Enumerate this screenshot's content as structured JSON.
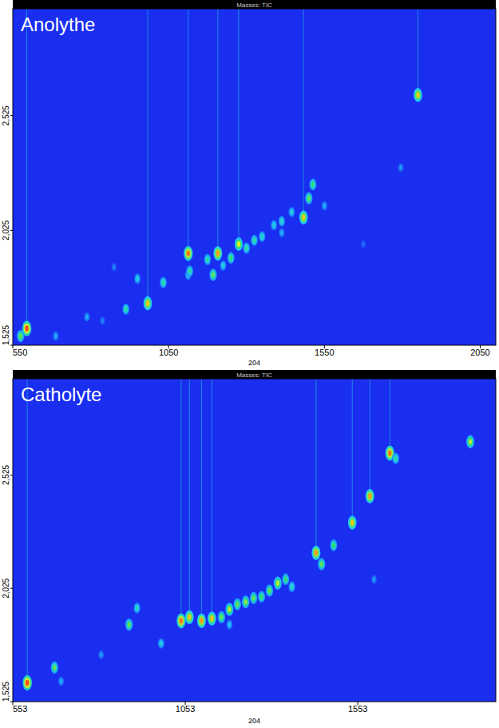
{
  "chart_data": [
    {
      "type": "scatter",
      "header": "Masses: TIC",
      "title": "Anolythe",
      "x_label": "204",
      "xlim": [
        550,
        2100
      ],
      "xticks": [
        550,
        1050,
        1550,
        2050
      ],
      "ylim": [
        1.525,
        2.99
      ],
      "yticks": [
        {
          "value": 1.525,
          "label": "1,525"
        },
        {
          "value": 2.025,
          "label": "2,025"
        },
        {
          "value": 2.525,
          "label": "2,525"
        }
      ],
      "x": [
        595,
        575,
        688,
        788,
        913,
        983,
        950,
        1033,
        1113,
        1113,
        1118,
        1175,
        1193,
        1208,
        1225,
        1250,
        1275,
        1300,
        1325,
        1350,
        1388,
        1413,
        1445,
        1483,
        1500,
        1513,
        1413,
        1550,
        1850,
        1795,
        1675,
        875,
        838
      ],
      "y": [
        1.598,
        1.565,
        1.565,
        1.648,
        1.682,
        1.708,
        1.815,
        1.798,
        1.832,
        1.925,
        1.848,
        1.898,
        1.832,
        1.925,
        1.872,
        1.905,
        1.965,
        1.948,
        1.982,
        1.998,
        2.048,
        2.065,
        2.105,
        2.082,
        2.165,
        2.225,
        2.015,
        2.132,
        2.615,
        2.298,
        1.965,
        1.865,
        1.632
      ],
      "intensity": [
        95,
        60,
        30,
        30,
        50,
        80,
        40,
        50,
        40,
        90,
        50,
        50,
        60,
        85,
        40,
        55,
        75,
        50,
        50,
        45,
        40,
        45,
        40,
        80,
        60,
        55,
        30,
        30,
        80,
        25,
        15,
        20,
        20
      ],
      "intensity_range": [
        0,
        100
      ]
    },
    {
      "type": "scatter",
      "header": "Masses: TIC",
      "title": "Catholyte",
      "x_label": "204",
      "xlim": [
        553,
        1953
      ],
      "xticks": [
        553,
        1053,
        1553
      ],
      "ylim": [
        1.525,
        2.95
      ],
      "yticks": [
        {
          "value": 1.525,
          "label": "1,525"
        },
        {
          "value": 2.025,
          "label": "2,025"
        },
        {
          "value": 2.525,
          "label": "2,525"
        }
      ],
      "x": [
        595,
        674,
        693,
        890,
        983,
        1041,
        1065,
        1100,
        1130,
        1158,
        1181,
        1204,
        1228,
        1251,
        1274,
        1297,
        1321,
        1344,
        1362,
        1181,
        1432,
        1448,
        1483,
        1537,
        1588,
        1646,
        1663,
        1879,
        913,
        809,
        1600
      ],
      "y": [
        1.608,
        1.675,
        1.615,
        1.865,
        1.782,
        1.882,
        1.898,
        1.882,
        1.892,
        1.898,
        1.932,
        1.955,
        1.965,
        1.982,
        1.988,
        2.015,
        2.048,
        2.065,
        2.032,
        1.865,
        2.182,
        2.132,
        2.215,
        2.315,
        2.432,
        2.622,
        2.598,
        2.672,
        1.938,
        1.732,
        2.065
      ],
      "intensity": [
        95,
        60,
        30,
        60,
        40,
        90,
        80,
        85,
        80,
        60,
        70,
        60,
        65,
        60,
        55,
        60,
        70,
        55,
        45,
        35,
        85,
        60,
        55,
        80,
        85,
        90,
        50,
        70,
        45,
        25,
        25
      ],
      "intensity_range": [
        0,
        100
      ]
    }
  ]
}
